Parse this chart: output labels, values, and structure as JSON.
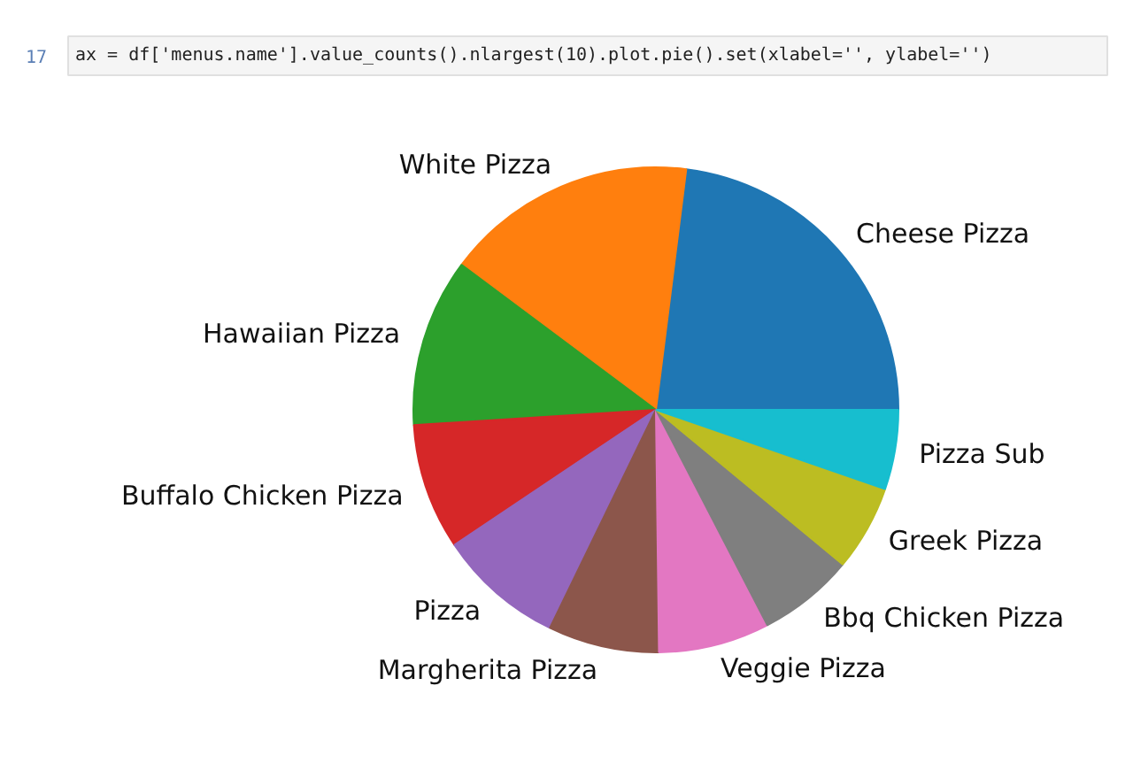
{
  "chart_data": {
    "type": "pie",
    "categories": [
      "Cheese Pizza",
      "White Pizza",
      "Hawaiian Pizza",
      "Buffalo Chicken Pizza",
      "Pizza",
      "Margherita Pizza",
      "Veggie Pizza",
      "Bbq Chicken Pizza",
      "Greek Pizza",
      "Pizza Sub"
    ],
    "values": [
      23,
      16.8,
      11.2,
      8.4,
      8.4,
      7.4,
      7.4,
      6.4,
      5.7,
      5.3
    ],
    "colors": [
      "#1f77b4",
      "#ff7f0e",
      "#2ca02c",
      "#d62728",
      "#9467bd",
      "#8c564b",
      "#e377c2",
      "#7f7f7f",
      "#bcbd22",
      "#17becf"
    ],
    "annotations": [
      "17",
      "ax = df['menus.name'].value_counts().nlargest(10).plot.pie().set(xlabel='', ylabel='')"
    ]
  }
}
